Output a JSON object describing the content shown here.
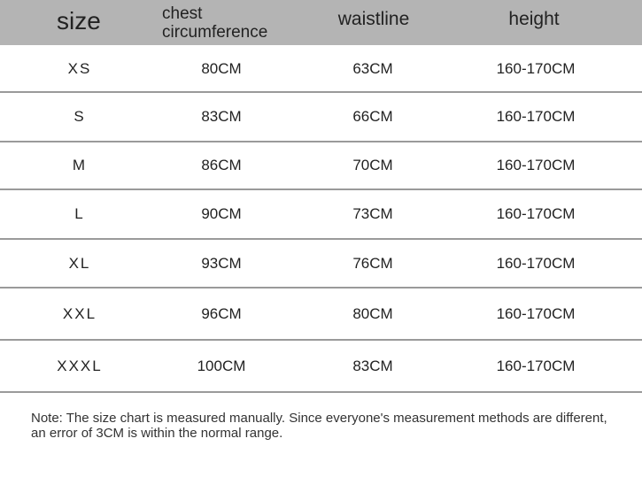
{
  "table": {
    "header": [
      "size",
      "chest circumference",
      "waistline",
      "height"
    ],
    "rows": [
      [
        "XS",
        "80CM",
        "63CM",
        "160-170CM"
      ],
      [
        "S",
        "83CM",
        "66CM",
        "160-170CM"
      ],
      [
        "M",
        "86CM",
        "70CM",
        "160-170CM"
      ],
      [
        "L",
        "90CM",
        "73CM",
        "160-170CM"
      ],
      [
        "XL",
        "93CM",
        "76CM",
        "160-170CM"
      ],
      [
        "XXL",
        "96CM",
        "80CM",
        "160-170CM"
      ],
      [
        "XXXL",
        "100CM",
        "83CM",
        "160-170CM"
      ]
    ]
  },
  "note": "Note: The size chart is measured manually. Since everyone's measurement methods are different, an error of 3CM is within the normal range."
}
